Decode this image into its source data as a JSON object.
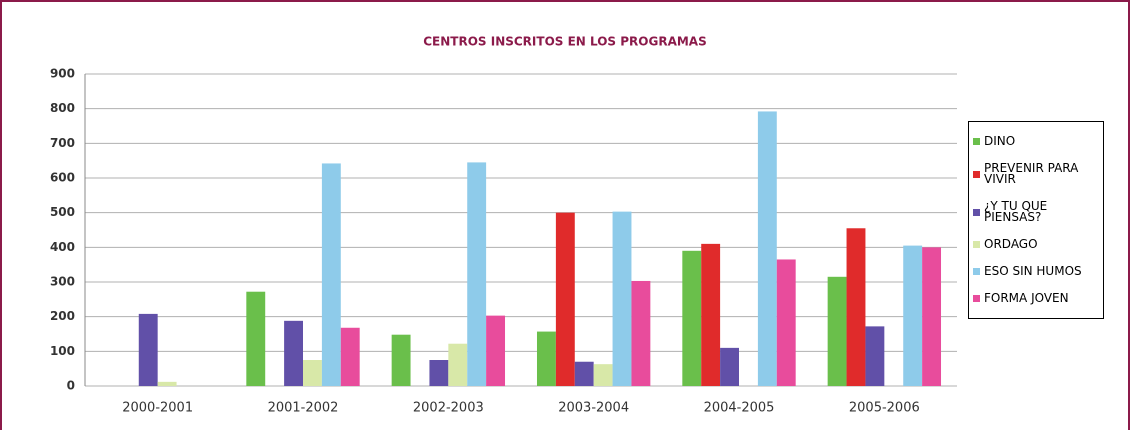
{
  "chart_data": {
    "type": "bar",
    "title": "CENTROS INSCRITOS EN LOS PROGRAMAS",
    "categories": [
      "2000-2001",
      "2001-2002",
      "2002-2003",
      "2003-2004",
      "2004-2005",
      "2005-2006"
    ],
    "series": [
      {
        "name": "DINO",
        "color": "#6abf4b",
        "values": [
          0,
          272,
          148,
          157,
          390,
          315
        ]
      },
      {
        "name": "PREVENIR PARA VIVIR",
        "color": "#e02b2b",
        "values": [
          0,
          0,
          0,
          500,
          410,
          455
        ]
      },
      {
        "name": "¿Y TU QUE PIENSAS?",
        "color": "#6150a8",
        "values": [
          208,
          188,
          75,
          70,
          110,
          172
        ]
      },
      {
        "name": "ORDAGO",
        "color": "#d8e8a8",
        "values": [
          12,
          75,
          122,
          63,
          0,
          0
        ]
      },
      {
        "name": "ESO SIN HUMOS",
        "color": "#8ecbea",
        "values": [
          0,
          642,
          645,
          503,
          792,
          405
        ]
      },
      {
        "name": "FORMA JOVEN",
        "color": "#e84c9c",
        "values": [
          0,
          168,
          203,
          303,
          365,
          400
        ]
      }
    ],
    "ylim": [
      0,
      900
    ],
    "yticks": [
      0,
      100,
      200,
      300,
      400,
      500,
      600,
      700,
      800,
      900
    ],
    "grid": true,
    "legend": "right"
  }
}
